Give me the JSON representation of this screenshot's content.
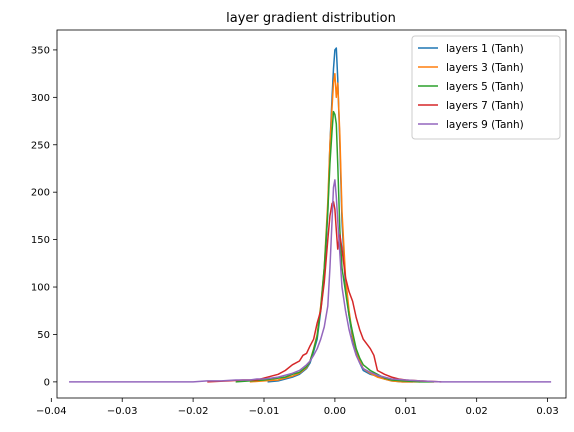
{
  "chart_data": {
    "type": "line",
    "title": "layer gradient distribution",
    "xlabel": "",
    "ylabel": "",
    "xlim": [
      -0.0392,
      0.0326
    ],
    "ylim": [
      -17,
      371
    ],
    "x_ticks": [
      -0.04,
      -0.03,
      -0.02,
      -0.01,
      0.0,
      0.01,
      0.02,
      0.03
    ],
    "x_tick_labels": [
      "−0.04",
      "−0.03",
      "−0.02",
      "−0.01",
      "0.00",
      "0.01",
      "0.02",
      "0.03"
    ],
    "y_ticks": [
      0,
      50,
      100,
      150,
      200,
      250,
      300,
      350
    ],
    "y_tick_labels": [
      "0",
      "50",
      "100",
      "150",
      "200",
      "250",
      "300",
      "350"
    ],
    "grid": false,
    "legend_position": "top-right",
    "series": [
      {
        "name": "layers 1 (Tanh)",
        "color": "#1f77b4",
        "x": [
          -0.0095,
          -0.008,
          -0.007,
          -0.006,
          -0.005,
          -0.004,
          -0.0035,
          -0.003,
          -0.0025,
          -0.002,
          -0.0015,
          -0.001,
          -0.0007,
          -0.0004,
          -0.0002,
          0.0,
          0.0002,
          0.0004,
          0.0007,
          0.001,
          0.0015,
          0.002,
          0.0025,
          0.003,
          0.0035,
          0.004,
          0.005,
          0.006,
          0.007,
          0.008,
          0.0095,
          0.011
        ],
        "y": [
          0,
          1,
          3,
          5,
          8,
          14,
          20,
          32,
          45,
          75,
          110,
          180,
          250,
          300,
          330,
          350,
          352,
          320,
          250,
          170,
          100,
          70,
          45,
          30,
          20,
          12,
          8,
          6,
          3,
          1,
          0,
          0
        ]
      },
      {
        "name": "layers 3 (Tanh)",
        "color": "#ff7f0e",
        "x": [
          -0.012,
          -0.01,
          -0.008,
          -0.007,
          -0.006,
          -0.005,
          -0.004,
          -0.0035,
          -0.003,
          -0.0025,
          -0.002,
          -0.0015,
          -0.001,
          -0.0007,
          -0.0004,
          -0.0002,
          0.0,
          0.0002,
          0.0004,
          0.0007,
          0.001,
          0.0015,
          0.002,
          0.0025,
          0.003,
          0.0035,
          0.004,
          0.005,
          0.006,
          0.007,
          0.008,
          0.0095,
          0.012
        ],
        "y": [
          0,
          1,
          2,
          4,
          6,
          9,
          15,
          22,
          35,
          50,
          80,
          120,
          190,
          250,
          290,
          315,
          325,
          300,
          315,
          260,
          180,
          110,
          75,
          48,
          34,
          22,
          14,
          9,
          5,
          3,
          1,
          0,
          0
        ]
      },
      {
        "name": "layers 5 (Tanh)",
        "color": "#2ca02c",
        "x": [
          -0.014,
          -0.012,
          -0.01,
          -0.008,
          -0.007,
          -0.006,
          -0.005,
          -0.004,
          -0.0035,
          -0.003,
          -0.0025,
          -0.002,
          -0.0015,
          -0.001,
          -0.0007,
          -0.0004,
          -0.0002,
          0.0,
          0.0002,
          0.0004,
          0.0007,
          0.001,
          0.0015,
          0.002,
          0.0025,
          0.003,
          0.0035,
          0.004,
          0.005,
          0.006,
          0.007,
          0.008,
          0.0095,
          0.012,
          0.014
        ],
        "y": [
          0,
          1,
          2,
          4,
          5,
          8,
          10,
          16,
          22,
          34,
          48,
          78,
          120,
          180,
          230,
          265,
          285,
          282,
          272,
          230,
          160,
          120,
          95,
          70,
          52,
          35,
          25,
          18,
          12,
          8,
          4,
          2,
          1,
          0,
          0
        ]
      },
      {
        "name": "layers 7 (Tanh)",
        "color": "#d62728",
        "x": [
          -0.018,
          -0.015,
          -0.013,
          -0.011,
          -0.01,
          -0.009,
          -0.008,
          -0.007,
          -0.006,
          -0.005,
          -0.0045,
          -0.004,
          -0.0035,
          -0.003,
          -0.0025,
          -0.002,
          -0.0015,
          -0.001,
          -0.0007,
          -0.0004,
          -0.0002,
          0.0,
          0.0002,
          0.0004,
          0.0007,
          0.001,
          0.0015,
          0.002,
          0.0025,
          0.003,
          0.0035,
          0.004,
          0.0045,
          0.005,
          0.0055,
          0.006,
          0.007,
          0.008,
          0.009,
          0.01,
          0.012,
          0.015
        ],
        "y": [
          0,
          1,
          2,
          2,
          4,
          6,
          8,
          12,
          18,
          22,
          28,
          30,
          38,
          45,
          62,
          75,
          105,
          150,
          175,
          188,
          190,
          182,
          160,
          140,
          155,
          140,
          110,
          95,
          85,
          68,
          55,
          45,
          40,
          35,
          28,
          12,
          8,
          5,
          3,
          2,
          1,
          0
        ]
      },
      {
        "name": "layers 9 (Tanh)",
        "color": "#9467bd",
        "x": [
          -0.0375,
          -0.035,
          -0.03,
          -0.025,
          -0.02,
          -0.018,
          -0.016,
          -0.014,
          -0.012,
          -0.011,
          -0.01,
          -0.009,
          -0.008,
          -0.007,
          -0.006,
          -0.005,
          -0.0045,
          -0.004,
          -0.0035,
          -0.003,
          -0.0025,
          -0.002,
          -0.0015,
          -0.001,
          -0.0007,
          -0.0004,
          -0.0002,
          0.0,
          0.0002,
          0.0004,
          0.0007,
          0.001,
          0.0015,
          0.002,
          0.0025,
          0.003,
          0.0035,
          0.004,
          0.005,
          0.006,
          0.007,
          0.008,
          0.01,
          0.012,
          0.015,
          0.02,
          0.025,
          0.0305
        ],
        "y": [
          0,
          0,
          0,
          0,
          0,
          1,
          1,
          2,
          2,
          3,
          3,
          4,
          5,
          7,
          9,
          12,
          15,
          18,
          22,
          28,
          35,
          45,
          58,
          80,
          120,
          170,
          205,
          213,
          195,
          170,
          135,
          100,
          75,
          55,
          40,
          28,
          20,
          14,
          10,
          7,
          5,
          3,
          2,
          1,
          0,
          0,
          0,
          0
        ]
      }
    ]
  }
}
